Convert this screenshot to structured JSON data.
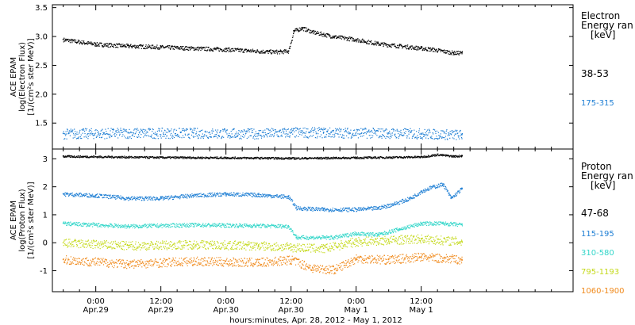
{
  "chart_data": [
    {
      "type": "scatter",
      "panel": "electron",
      "ylabel": [
        "ACE EPAM",
        "log(Electron Flux)",
        "[1/(cm²s ster MeV)]"
      ],
      "y_ticks": [
        "3.5",
        "3.0",
        "2.5",
        "2.0",
        "1.5"
      ],
      "ylim": [
        1.05,
        3.55
      ],
      "legend_title": [
        "Electron",
        "Energy ran",
        "[keV]"
      ],
      "series": [
        {
          "name": "38-53",
          "color": "#000000",
          "values": [
            [
              -6,
              2.95
            ],
            [
              0,
              2.87
            ],
            [
              6,
              2.84
            ],
            [
              12,
              2.82
            ],
            [
              18,
              2.8
            ],
            [
              24,
              2.78
            ],
            [
              28,
              2.76
            ],
            [
              32,
              2.74
            ],
            [
              34,
              2.74
            ],
            [
              35.5,
              2.75
            ],
            [
              36.5,
              3.1
            ],
            [
              38,
              3.15
            ],
            [
              40,
              3.08
            ],
            [
              44,
              3.0
            ],
            [
              48,
              2.95
            ],
            [
              52,
              2.88
            ],
            [
              56,
              2.84
            ],
            [
              60,
              2.8
            ],
            [
              62,
              2.78
            ],
            [
              64,
              2.75
            ],
            [
              66,
              2.72
            ],
            [
              67.5,
              2.72
            ]
          ]
        },
        {
          "name": "175-315",
          "color": "#1f7fd4",
          "values": [
            [
              -6,
              1.32
            ],
            [
              6,
              1.33
            ],
            [
              18,
              1.33
            ],
            [
              30,
              1.32
            ],
            [
              36,
              1.34
            ],
            [
              42,
              1.34
            ],
            [
              54,
              1.33
            ],
            [
              60,
              1.32
            ],
            [
              67.5,
              1.3
            ]
          ]
        }
      ]
    },
    {
      "type": "scatter",
      "panel": "proton",
      "ylabel": [
        "ACE EPAM",
        "log(Proton Flux)",
        "[1/(cm²s ster MeV)]"
      ],
      "y_ticks": [
        "3",
        "2",
        "1",
        "0",
        "-1"
      ],
      "ylim": [
        -1.75,
        3.35
      ],
      "legend_title": [
        "Proton",
        "Energy ran",
        "[keV]"
      ],
      "series": [
        {
          "name": "47-68",
          "color": "#000000",
          "values": [
            [
              -6,
              3.1
            ],
            [
              12,
              3.06
            ],
            [
              24,
              3.05
            ],
            [
              36,
              3.03
            ],
            [
              48,
              3.05
            ],
            [
              60,
              3.08
            ],
            [
              63,
              3.16
            ],
            [
              66,
              3.1
            ],
            [
              67.5,
              3.12
            ]
          ]
        },
        {
          "name": "115-195",
          "color": "#1f7fd4",
          "values": [
            [
              -6,
              1.75
            ],
            [
              0,
              1.7
            ],
            [
              6,
              1.6
            ],
            [
              12,
              1.6
            ],
            [
              18,
              1.7
            ],
            [
              24,
              1.75
            ],
            [
              30,
              1.72
            ],
            [
              35.5,
              1.65
            ],
            [
              37,
              1.25
            ],
            [
              42,
              1.2
            ],
            [
              48,
              1.2
            ],
            [
              52,
              1.25
            ],
            [
              55,
              1.4
            ],
            [
              58,
              1.6
            ],
            [
              60,
              1.85
            ],
            [
              62,
              2.0
            ],
            [
              64,
              2.1
            ],
            [
              65.5,
              1.6
            ],
            [
              67.5,
              1.95
            ]
          ]
        },
        {
          "name": "310-580",
          "color": "#33d6c9",
          "values": [
            [
              -6,
              0.7
            ],
            [
              6,
              0.6
            ],
            [
              18,
              0.65
            ],
            [
              30,
              0.62
            ],
            [
              35.5,
              0.6
            ],
            [
              37,
              0.2
            ],
            [
              44,
              0.2
            ],
            [
              48,
              0.35
            ],
            [
              52,
              0.3
            ],
            [
              56,
              0.5
            ],
            [
              60,
              0.7
            ],
            [
              64,
              0.7
            ],
            [
              67.5,
              0.65
            ]
          ]
        },
        {
          "name": "795-1193",
          "color": "#c4d91a",
          "values": [
            [
              -6,
              0.0
            ],
            [
              6,
              -0.1
            ],
            [
              18,
              -0.05
            ],
            [
              30,
              -0.1
            ],
            [
              36,
              -0.15
            ],
            [
              42,
              -0.2
            ],
            [
              48,
              0.05
            ],
            [
              54,
              0.1
            ],
            [
              60,
              0.15
            ],
            [
              67.5,
              0.05
            ]
          ]
        },
        {
          "name": "1060-1900",
          "color": "#f08a1c",
          "values": [
            [
              -6,
              -0.6
            ],
            [
              6,
              -0.75
            ],
            [
              18,
              -0.65
            ],
            [
              30,
              -0.7
            ],
            [
              36,
              -0.6
            ],
            [
              40,
              -0.9
            ],
            [
              44,
              -0.95
            ],
            [
              48,
              -0.55
            ],
            [
              54,
              -0.6
            ],
            [
              60,
              -0.5
            ],
            [
              64,
              -0.55
            ],
            [
              67.5,
              -0.6
            ]
          ]
        }
      ]
    }
  ],
  "x_axis": {
    "xlim_hours": [
      -8,
      88
    ],
    "xlabel": "hours:minutes, Apr. 28, 2012 - May  1, 2012",
    "major_ticks": [
      {
        "h": 0,
        "time": "0:00",
        "date": "Apr.29"
      },
      {
        "h": 12,
        "time": "12:00",
        "date": "Apr.29"
      },
      {
        "h": 24,
        "time": "0:00",
        "date": "Apr.30"
      },
      {
        "h": 36,
        "time": "12:00",
        "date": "Apr.30"
      },
      {
        "h": 48,
        "time": "0:00",
        "date": "May 1"
      },
      {
        "h": 60,
        "time": "12:00",
        "date": "May 1"
      }
    ]
  }
}
